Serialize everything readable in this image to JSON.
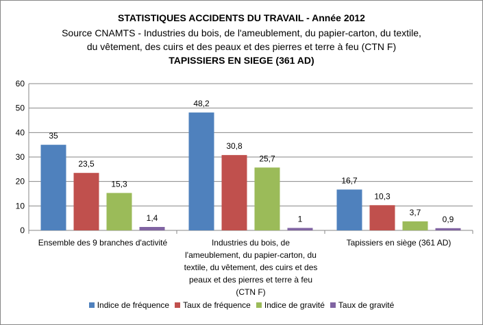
{
  "chart_data": {
    "type": "bar",
    "title": "STATISTIQUES ACCIDENTS DU TRAVAIL - Année 2012",
    "subtitle_lines": [
      "Source CNAMTS - Industries du bois, de l'ameublement, du papier-carton, du textile,",
      "du vêtement, des cuirs et des peaux et des pierres et terre à feu (CTN F)"
    ],
    "subtitle_bold": "TAPISSIERS EN SIEGE (361 AD)",
    "categories": [
      [
        "Ensemble des 9 branches d'activité"
      ],
      [
        "Industries du bois, de",
        "l'ameublement, du papier-carton, du",
        "textile, du vêtement, des cuirs et des",
        "peaux et des pierres et terre à feu",
        "(CTN F)"
      ],
      [
        "Tapissiers en siège (361 AD)"
      ]
    ],
    "series": [
      {
        "name": "Indice de fréquence",
        "color": "#4F81BD",
        "values": [
          35,
          48.2,
          16.7
        ],
        "labels": [
          "35",
          "48,2",
          "16,7"
        ]
      },
      {
        "name": "Taux de fréquence",
        "color": "#C0504D",
        "values": [
          23.5,
          30.8,
          10.3
        ],
        "labels": [
          "23,5",
          "30,8",
          "10,3"
        ]
      },
      {
        "name": "Indice de gravité",
        "color": "#9BBB59",
        "values": [
          15.3,
          25.7,
          3.7
        ],
        "labels": [
          "15,3",
          "25,7",
          "3,7"
        ]
      },
      {
        "name": "Taux de gravité",
        "color": "#8064A2",
        "values": [
          1.4,
          1,
          0.9
        ],
        "labels": [
          "1,4",
          "1",
          "0,9"
        ]
      }
    ],
    "ylim": [
      0,
      60
    ],
    "yticks": [
      "0",
      "10",
      "20",
      "30",
      "40",
      "50",
      "60"
    ],
    "grid": true,
    "legend_position": "bottom"
  }
}
